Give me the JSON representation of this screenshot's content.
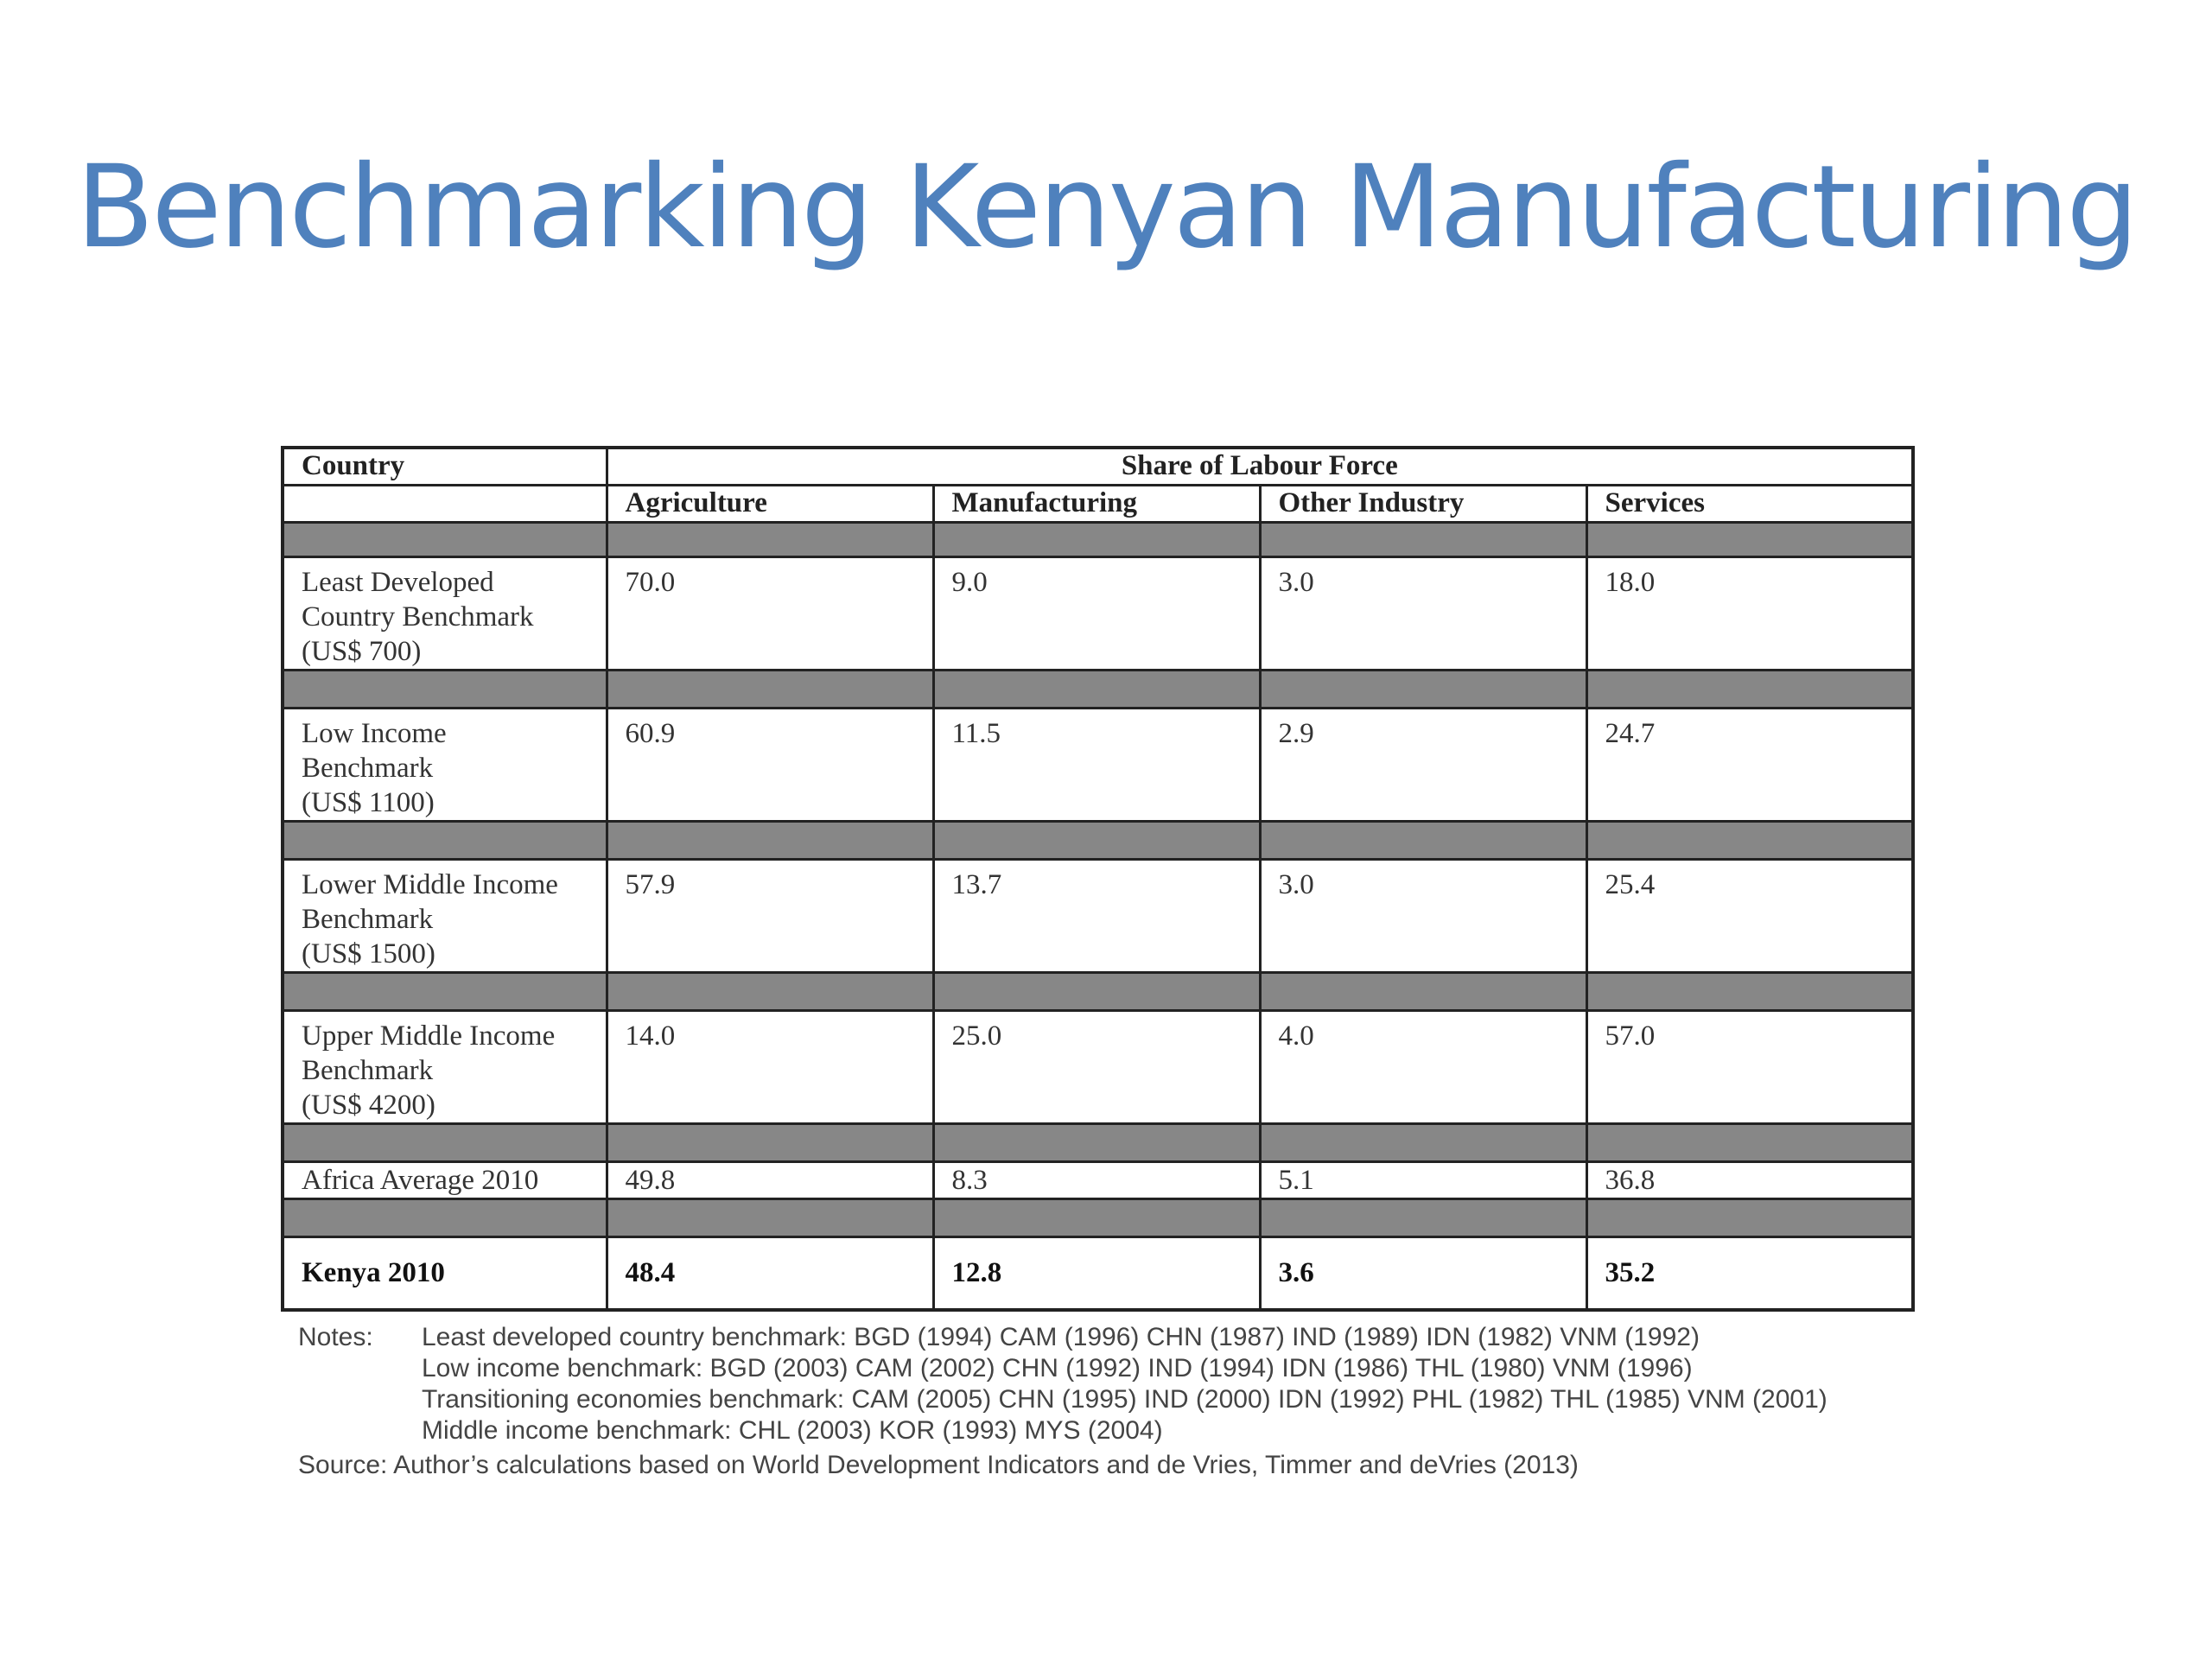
{
  "slide": {
    "title": "Benchmarking Kenyan Manufacturing"
  },
  "table": {
    "header": {
      "country": "Country",
      "group": "Share of Labour Force",
      "columns": [
        "Agriculture",
        "Manufacturing",
        "Other Industry",
        "Services"
      ]
    },
    "rows": [
      {
        "label_lines": [
          "Least Developed",
          "Country Benchmark",
          "(US$ 700)"
        ],
        "values": [
          "70.0",
          "9.0",
          "3.0",
          "18.0"
        ]
      },
      {
        "label_lines": [
          "Low Income",
          "Benchmark",
          "(US$ 1100)"
        ],
        "values": [
          "60.9",
          "11.5",
          "2.9",
          "24.7"
        ]
      },
      {
        "label_lines": [
          "Lower Middle Income",
          "Benchmark",
          "(US$ 1500)"
        ],
        "values": [
          "57.9",
          "13.7",
          "3.0",
          "25.4"
        ]
      },
      {
        "label_lines": [
          "Upper Middle Income",
          "Benchmark",
          "(US$ 4200)"
        ],
        "values": [
          "14.0",
          "25.0",
          "4.0",
          "57.0"
        ]
      },
      {
        "label_lines": [
          "Africa Average 2010"
        ],
        "values": [
          "49.8",
          "8.3",
          "5.1",
          "36.8"
        ]
      },
      {
        "label_lines": [
          "Kenya 2010"
        ],
        "values": [
          "48.4",
          "12.8",
          "3.6",
          "35.2"
        ]
      }
    ]
  },
  "notes": {
    "label": "Notes:",
    "lines": [
      "Least developed country benchmark: BGD (1994) CAM (1996) CHN (1987) IND (1989) IDN (1982) VNM (1992)",
      "Low income benchmark: BGD (2003) CAM (2002) CHN (1992) IND (1994) IDN (1986) THL (1980) VNM (1996)",
      "Transitioning economies benchmark: CAM (2005) CHN (1995) IND (2000) IDN (1992) PHL (1982) THL (1985) VNM (2001)",
      "Middle income benchmark: CHL (2003) KOR (1993) MYS (2004)"
    ],
    "source": "Source: Author’s calculations based on World Development Indicators and de Vries, Timmer and deVries (2013)"
  }
}
